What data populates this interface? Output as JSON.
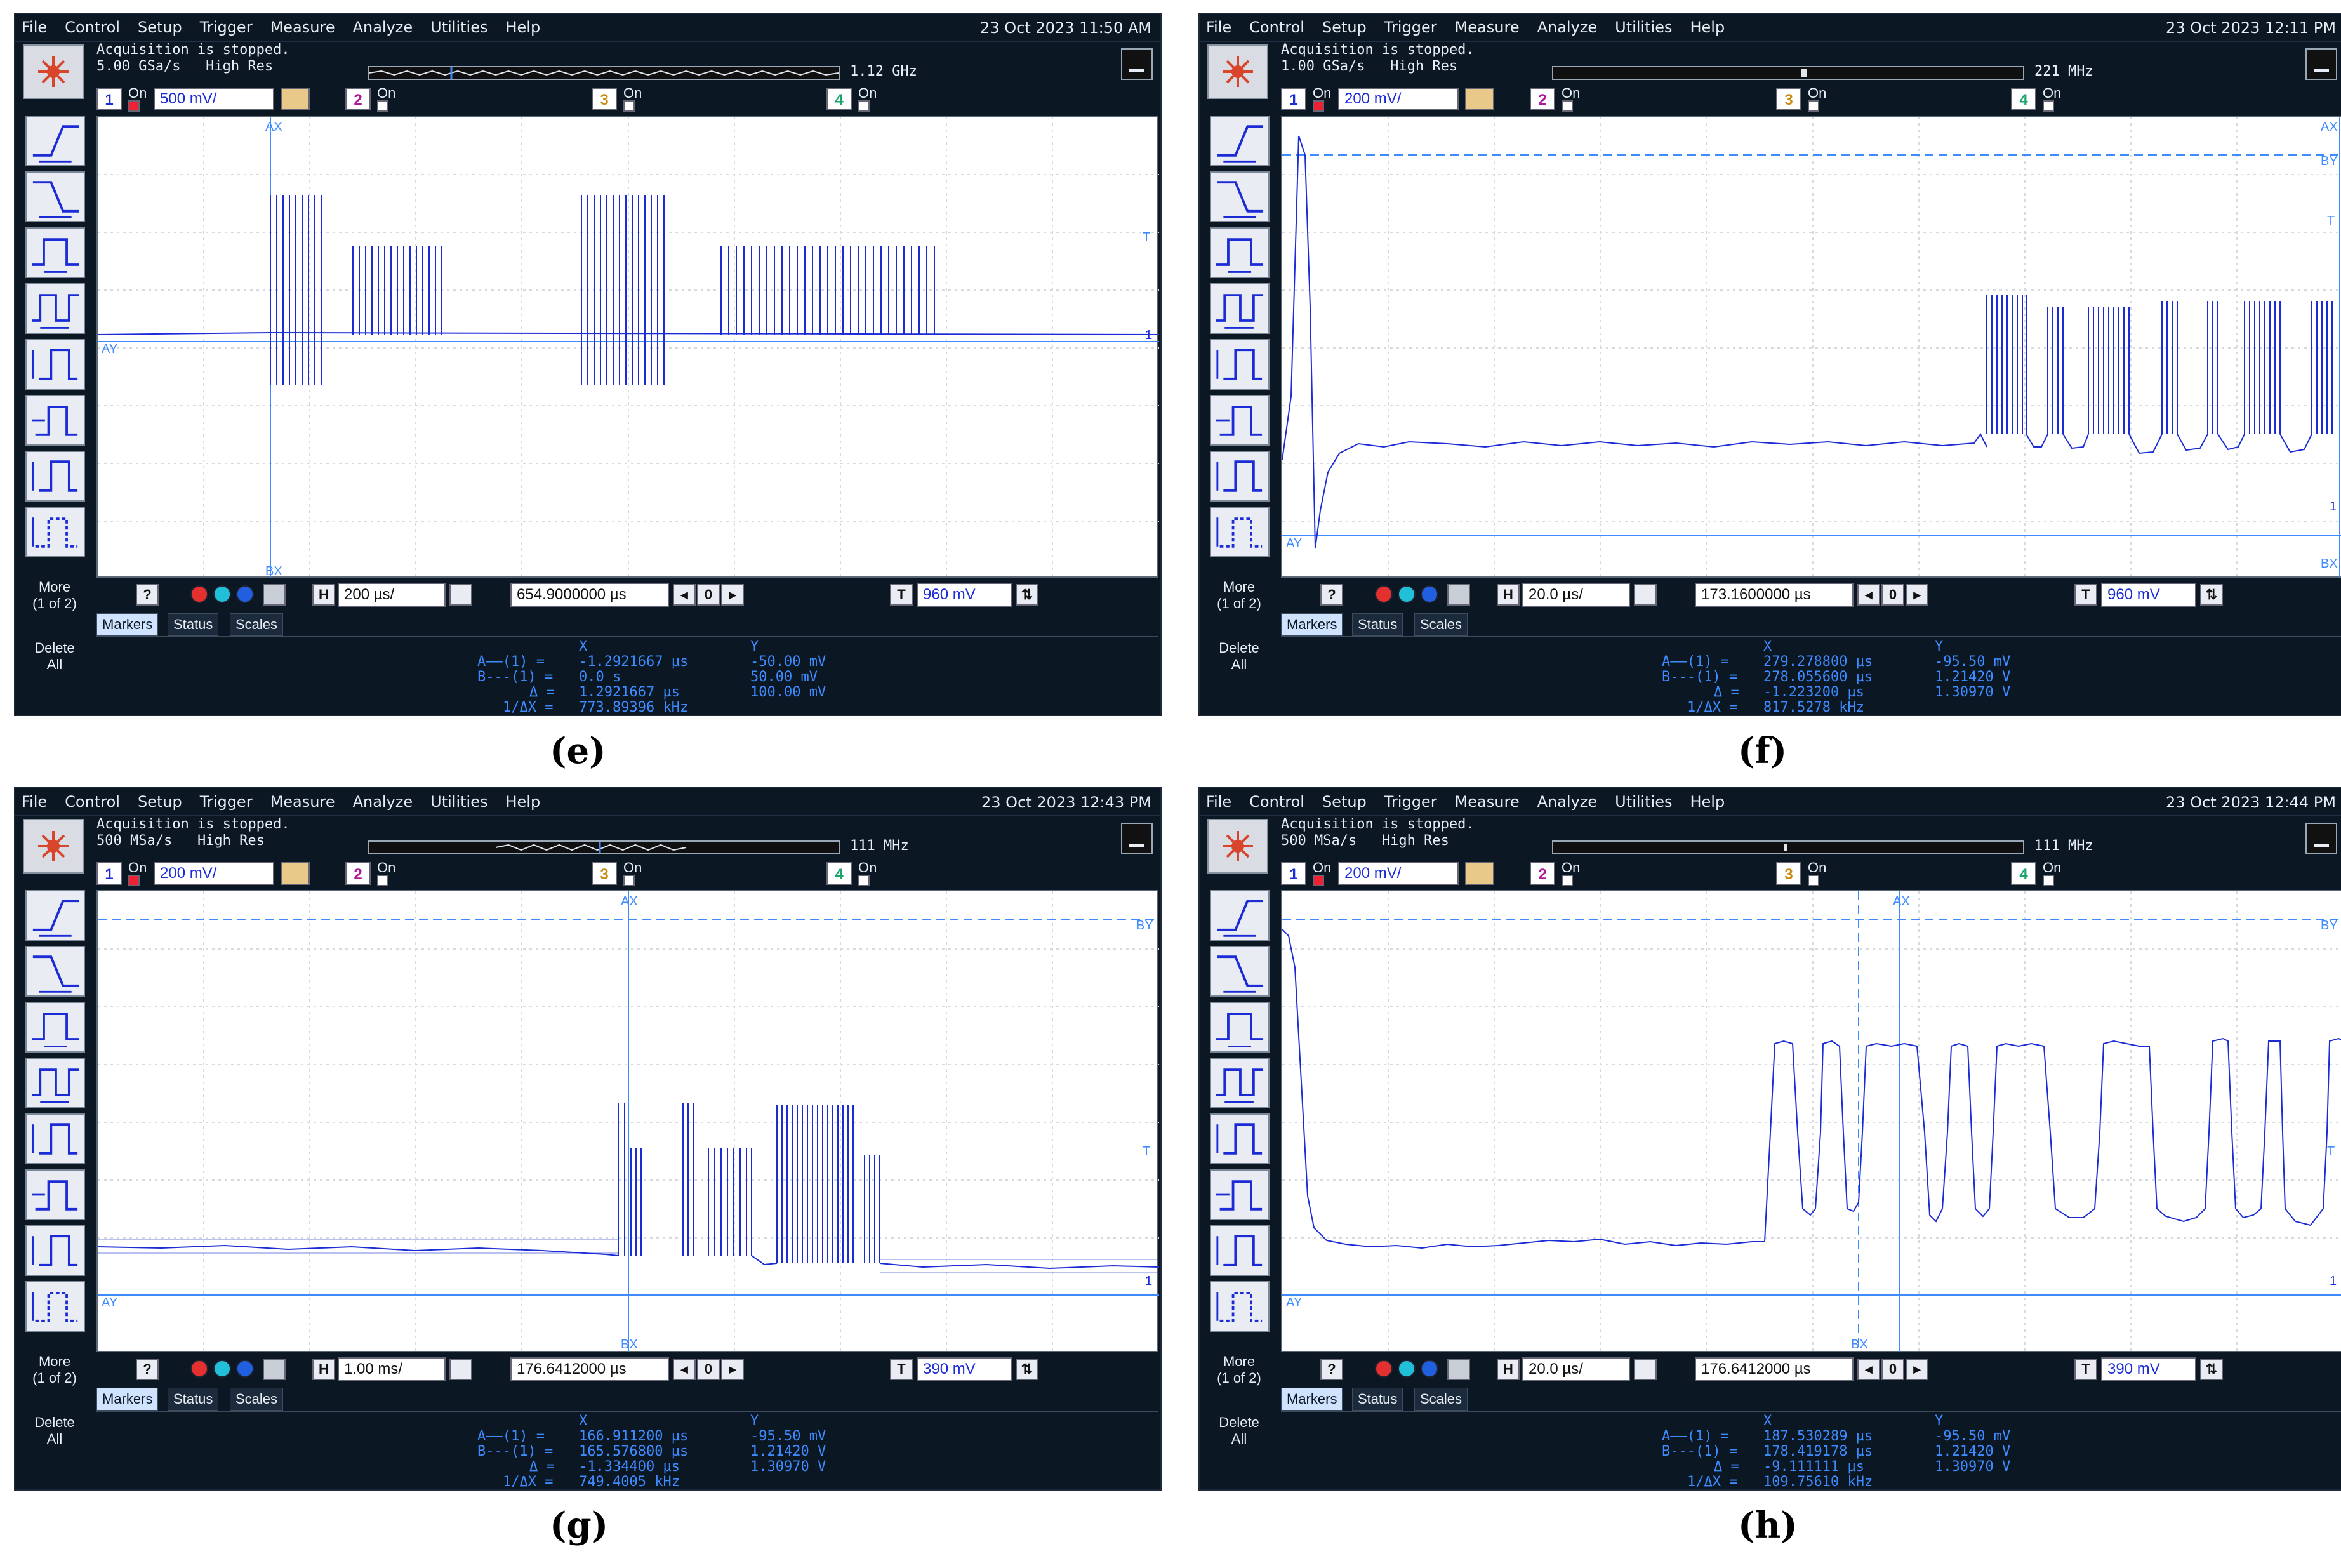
{
  "menu": [
    "File",
    "Control",
    "Setup",
    "Trigger",
    "Measure",
    "Analyze",
    "Utilities",
    "Help"
  ],
  "common": {
    "on_label": "On",
    "more_label": "More",
    "more_sub": "(1 of 2)",
    "delete_label": "Delete",
    "delete_sub": "All",
    "tabs": [
      "Markers",
      "Status",
      "Scales"
    ],
    "hdr_x": "X",
    "hdr_y": "Y",
    "ch1_num": "1",
    "ch2_num": "2",
    "ch3_num": "3",
    "ch4_num": "4",
    "h_label": "H",
    "t_label": "T",
    "trig_zero": "0",
    "marker_ay": "AY",
    "marker_by": "BY",
    "marker_ax": "AX",
    "marker_bx": "BX",
    "marker_t": "T",
    "marker_1": "1",
    "trace_color": "#1b2bd6",
    "marker_color": "#3e8bff"
  },
  "panels": [
    {
      "id": "e",
      "caption": "(e)",
      "date": "23 Oct 2023 11:50 AM",
      "acq_line1": "Acquisition is stopped.",
      "acq_line2": "5.00 GSa/s   High Res",
      "bandwidth": "1.12 GHz",
      "ch1_scale": "500 mV/",
      "h_scale": "200 µs/",
      "h_pos": "654.9000000 µs",
      "trig_level": "960 mV",
      "markers": {
        "a_x": "-1.2921667 µs",
        "a_y": "-50.00 mV",
        "b_x": "0.0 s",
        "b_y": "50.00 mV",
        "d_x": "1.2921667 µs",
        "d_y": "100.00 mV",
        "inv": "773.89396 kHz"
      }
    },
    {
      "id": "f",
      "caption": "(f)",
      "date": "23 Oct 2023 12:11 PM",
      "acq_line1": "Acquisition is stopped.",
      "acq_line2": "1.00 GSa/s   High Res",
      "bandwidth": "221 MHz",
      "ch1_scale": "200 mV/",
      "h_scale": "20.0 µs/",
      "h_pos": "173.1600000 µs",
      "trig_level": "960 mV",
      "markers": {
        "a_x": "279.278800 µs",
        "a_y": "-95.50 mV",
        "b_x": "278.055600 µs",
        "b_y": "1.21420 V",
        "d_x": "-1.223200 µs",
        "d_y": "1.30970 V",
        "inv": "817.5278 kHz"
      }
    },
    {
      "id": "g",
      "caption": "(g)",
      "date": "23 Oct 2023 12:43 PM",
      "acq_line1": "Acquisition is stopped.",
      "acq_line2": "500 MSa/s   High Res",
      "bandwidth": "111 MHz",
      "ch1_scale": "200 mV/",
      "h_scale": "1.00 ms/",
      "h_pos": "176.6412000 µs",
      "trig_level": "390 mV",
      "markers": {
        "a_x": "166.911200 µs",
        "a_y": "-95.50 mV",
        "b_x": "165.576800 µs",
        "b_y": "1.21420 V",
        "d_x": "-1.334400 µs",
        "d_y": "1.30970 V",
        "inv": "749.4005 kHz"
      }
    },
    {
      "id": "h",
      "caption": "(h)",
      "date": "23 Oct 2023 12:44 PM",
      "acq_line1": "Acquisition is stopped.",
      "acq_line2": "500 MSa/s   High Res",
      "bandwidth": "111 MHz",
      "ch1_scale": "200 mV/",
      "h_scale": "20.0 µs/",
      "h_pos": "176.6412000 µs",
      "trig_level": "390 mV",
      "markers": {
        "a_x": "187.530289 µs",
        "a_y": "-95.50 mV",
        "b_x": "178.419178 µs",
        "b_y": "1.21420 V",
        "d_x": "-9.111111 µs",
        "d_y": "1.30970 V",
        "inv": "109.75610 kHz"
      }
    }
  ]
}
